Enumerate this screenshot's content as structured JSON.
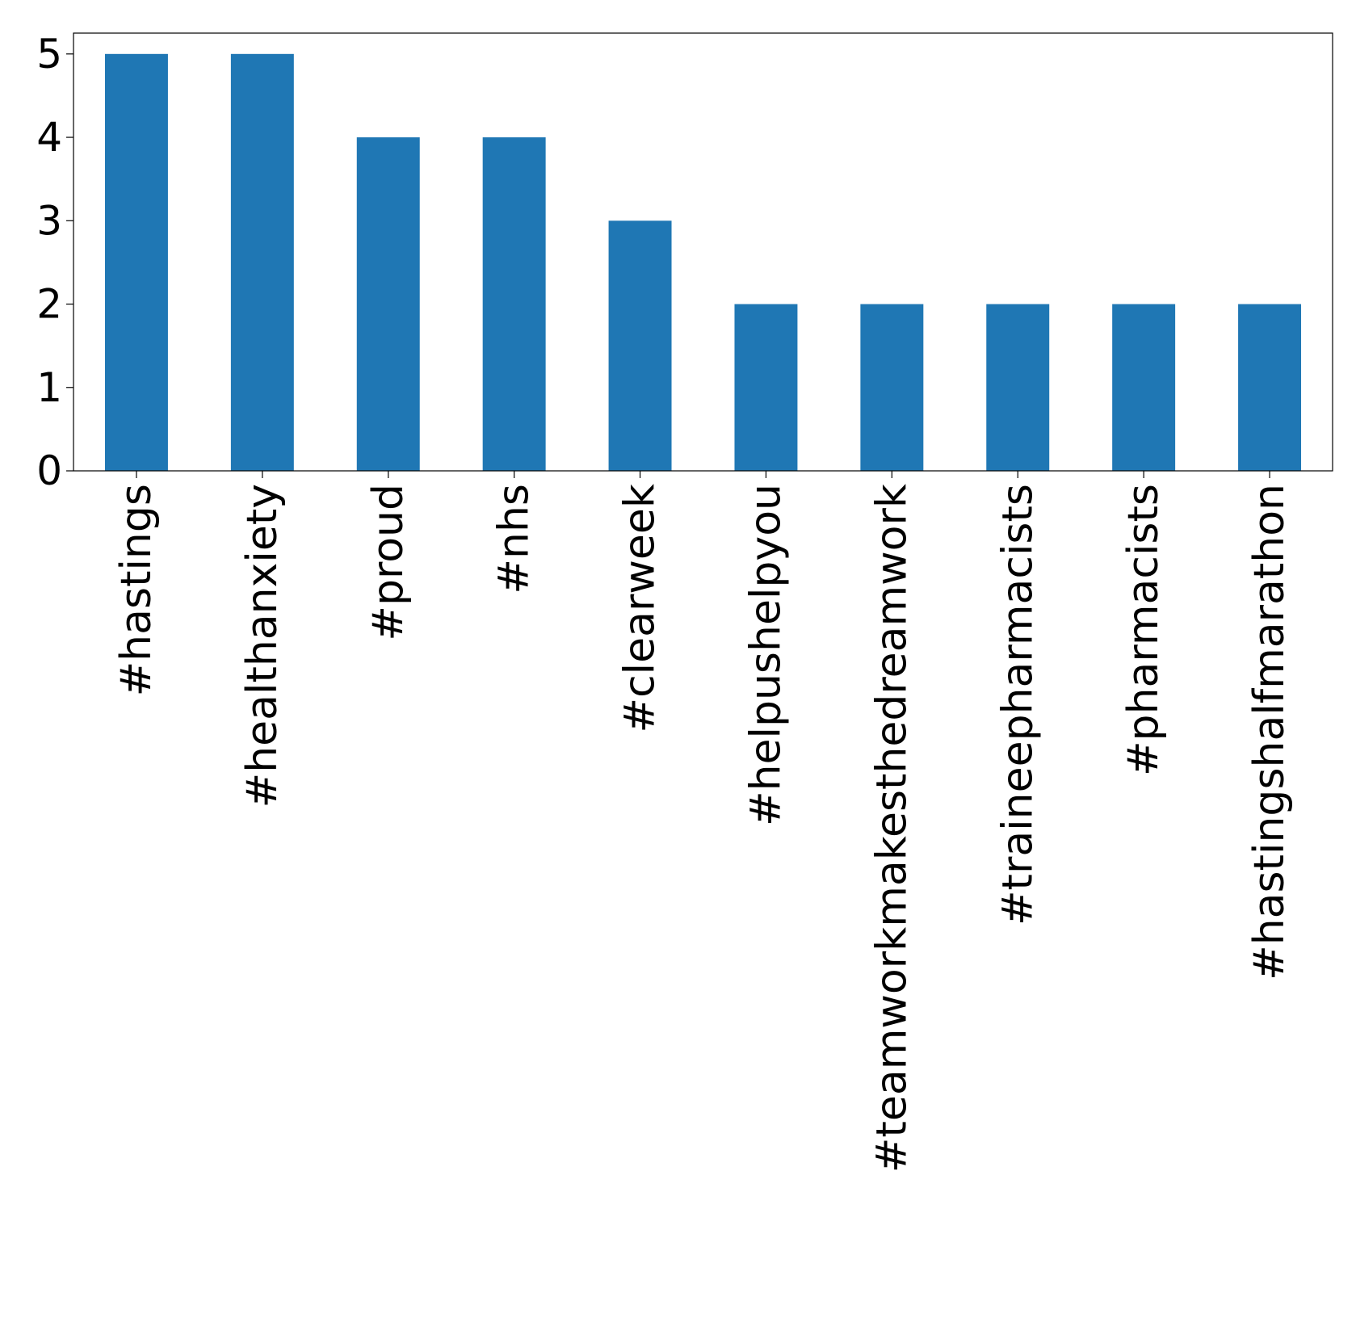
{
  "chart_data": {
    "type": "bar",
    "title": "",
    "xlabel": "",
    "ylabel": "",
    "categories": [
      "#hastings",
      "#healthanxiety",
      "#proud",
      "#nhs",
      "#clearweek",
      "#helpushelpyou",
      "#teamworkmakesthedreamwork",
      "#traineepharmacists",
      "#pharmacists",
      "#hastingshalfmarathon"
    ],
    "values": [
      5,
      5,
      4,
      4,
      3,
      2,
      2,
      2,
      2,
      2
    ],
    "ylim": [
      0,
      5.25
    ],
    "yticks": [
      "0",
      "1",
      "2",
      "3",
      "4",
      "5"
    ],
    "bar_color": "#1f77b4",
    "grid": false,
    "legend": "none"
  }
}
